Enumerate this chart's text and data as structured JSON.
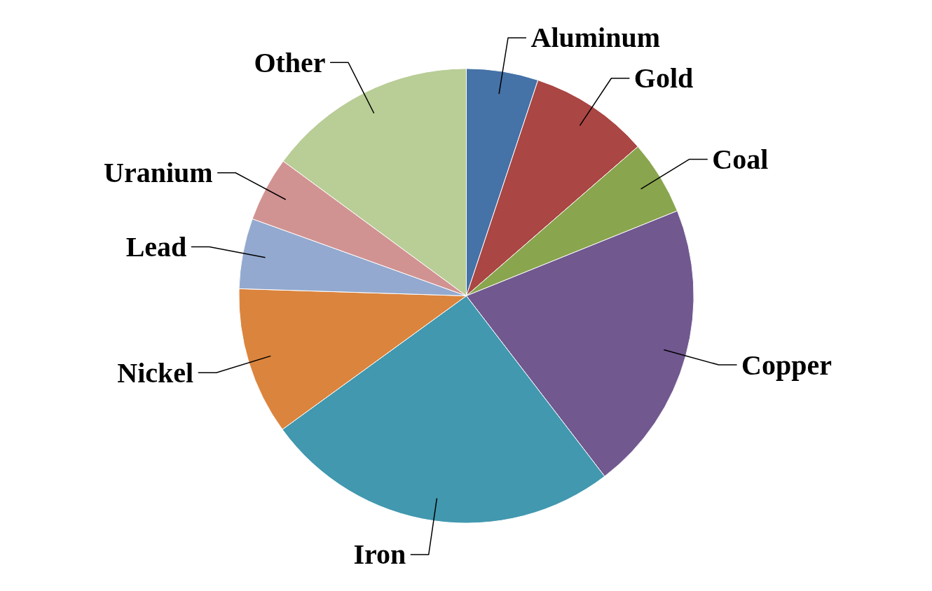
{
  "chart_data": {
    "type": "pie",
    "categories": [
      "Aluminum",
      "Gold",
      "Coal",
      "Copper",
      "Iron",
      "Nickel",
      "Lead",
      "Uranium",
      "Other"
    ],
    "values": [
      5.1,
      8.5,
      5.3,
      20.7,
      25.4,
      10.5,
      5.0,
      4.6,
      14.9
    ],
    "colors": [
      "#4572a7",
      "#aa4643",
      "#89a54e",
      "#71588f",
      "#4198af",
      "#db843d",
      "#93a9cf",
      "#d19392",
      "#b9cd96"
    ]
  }
}
